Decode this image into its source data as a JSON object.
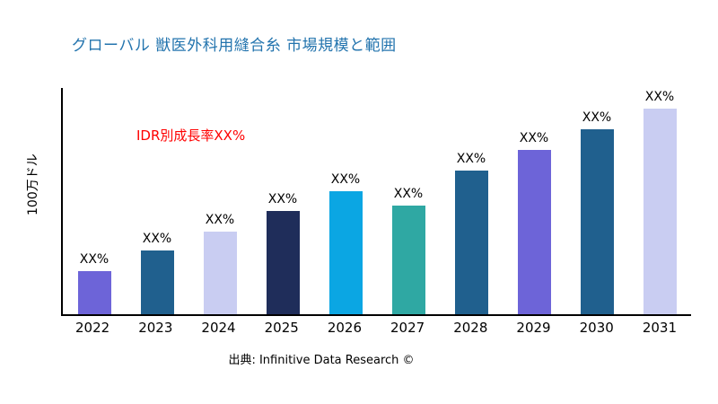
{
  "chart_data": {
    "type": "bar",
    "title": "グローバル 獣医外科用縫合糸 市場規模と範囲",
    "ylabel": "100万ドル",
    "annotation": "IDR別成長率XX%",
    "source": "出典: Infinitive Data Research ©",
    "categories": [
      "2022",
      "2023",
      "2024",
      "2025",
      "2026",
      "2027",
      "2028",
      "2029",
      "2030",
      "2031"
    ],
    "values": [
      21,
      31,
      40,
      50,
      60,
      53,
      70,
      80,
      90,
      100
    ],
    "bar_labels": [
      "XX%",
      "XX%",
      "XX%",
      "XX%",
      "XX%",
      "XX%",
      "XX%",
      "XX%",
      "XX%",
      "XX%"
    ],
    "colors": [
      "#6d64d8",
      "#20608e",
      "#c9cdf2",
      "#1f2d5a",
      "#0ba6e3",
      "#2fa8a3",
      "#20608e",
      "#6d64d8",
      "#20608e",
      "#c9cdf2"
    ],
    "ylim": [
      0,
      110
    ],
    "grid": false,
    "legend": "none",
    "title_color": "#2374ae",
    "annotation_color": "#ff0000"
  }
}
